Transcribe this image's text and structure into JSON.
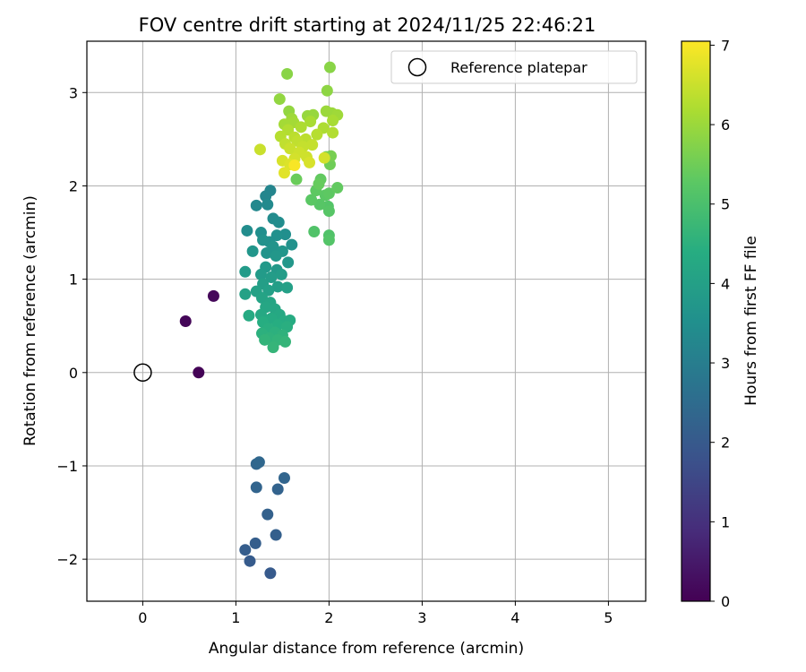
{
  "chart_data": {
    "type": "scatter",
    "title": "FOV centre drift starting at 2024/11/25 22:46:21",
    "xlabel": "Angular distance from reference (arcmin)",
    "ylabel": "Rotation from reference (arcmin)",
    "xlim": [
      -0.6,
      5.4
    ],
    "ylim": [
      -2.45,
      3.55
    ],
    "xticks": [
      0,
      1,
      2,
      3,
      4,
      5
    ],
    "yticks": [
      -2,
      -1,
      0,
      1,
      2,
      3
    ],
    "xtick_labels": [
      "0",
      "1",
      "2",
      "3",
      "4",
      "5"
    ],
    "ytick_labels": [
      "−2",
      "−1",
      "0",
      "1",
      "2",
      "3"
    ],
    "grid": true,
    "legend": {
      "placement": "top-right",
      "entries": [
        "Reference platepar"
      ]
    },
    "reference_point": {
      "name": "Reference platepar",
      "x": 0,
      "y": 0
    },
    "colorbar": {
      "label": "Hours from first FF file",
      "range": [
        0,
        7.05
      ],
      "ticks": [
        0,
        1,
        2,
        3,
        4,
        5,
        6,
        7
      ],
      "tick_labels": [
        "0",
        "1",
        "2",
        "3",
        "4",
        "5",
        "6",
        "7"
      ],
      "colormap": "viridis"
    },
    "series": [
      {
        "values": [
          [
            0.6,
            0.0,
            0.05
          ],
          [
            0.46,
            0.55,
            0.1
          ],
          [
            0.76,
            0.82,
            0.15
          ],
          [
            1.37,
            -2.15,
            2.0
          ],
          [
            1.15,
            -2.02,
            2.05
          ],
          [
            1.1,
            -1.9,
            2.1
          ],
          [
            1.21,
            -1.83,
            2.12
          ],
          [
            1.43,
            -1.74,
            2.15
          ],
          [
            1.34,
            -1.52,
            2.2
          ],
          [
            1.45,
            -1.25,
            2.25
          ],
          [
            1.22,
            -1.23,
            2.28
          ],
          [
            1.52,
            -1.13,
            2.3
          ],
          [
            1.22,
            -0.98,
            2.35
          ],
          [
            1.25,
            -0.96,
            2.38
          ],
          [
            1.37,
            1.95,
            3.2
          ],
          [
            1.32,
            1.89,
            3.25
          ],
          [
            1.22,
            1.79,
            3.3
          ],
          [
            1.34,
            1.8,
            3.35
          ],
          [
            1.4,
            1.65,
            3.4
          ],
          [
            1.46,
            1.61,
            3.45
          ],
          [
            1.12,
            1.52,
            3.45
          ],
          [
            1.27,
            1.5,
            3.5
          ],
          [
            1.53,
            1.48,
            3.5
          ],
          [
            1.44,
            1.47,
            3.55
          ],
          [
            1.36,
            1.4,
            3.55
          ],
          [
            1.29,
            1.42,
            3.6
          ],
          [
            1.6,
            1.37,
            3.6
          ],
          [
            1.4,
            1.35,
            3.65
          ],
          [
            1.33,
            1.28,
            3.65
          ],
          [
            1.5,
            1.3,
            3.7
          ],
          [
            1.18,
            1.3,
            3.7
          ],
          [
            1.43,
            1.25,
            3.75
          ],
          [
            1.56,
            1.18,
            3.75
          ],
          [
            1.32,
            1.13,
            3.8
          ],
          [
            1.44,
            1.1,
            3.8
          ],
          [
            1.1,
            1.08,
            3.85
          ],
          [
            1.27,
            1.05,
            3.85
          ],
          [
            1.38,
            1.02,
            3.9
          ],
          [
            1.49,
            1.05,
            3.9
          ],
          [
            1.29,
            0.95,
            3.95
          ],
          [
            1.45,
            0.92,
            3.95
          ],
          [
            1.55,
            0.91,
            4.0
          ],
          [
            1.35,
            0.88,
            4.0
          ],
          [
            1.22,
            0.87,
            4.05
          ],
          [
            1.1,
            0.84,
            4.05
          ],
          [
            1.28,
            0.8,
            4.1
          ],
          [
            1.37,
            0.75,
            4.15
          ],
          [
            1.42,
            0.68,
            4.2
          ],
          [
            1.32,
            0.7,
            4.2
          ],
          [
            1.27,
            0.62,
            4.25
          ],
          [
            1.47,
            0.62,
            4.25
          ],
          [
            1.14,
            0.61,
            4.3
          ],
          [
            1.38,
            0.58,
            4.3
          ],
          [
            1.52,
            0.55,
            4.35
          ],
          [
            1.58,
            0.56,
            4.35
          ],
          [
            1.29,
            0.54,
            4.4
          ],
          [
            1.45,
            0.51,
            4.4
          ],
          [
            1.55,
            0.49,
            4.45
          ],
          [
            1.35,
            0.47,
            4.45
          ],
          [
            1.42,
            0.43,
            4.5
          ],
          [
            1.28,
            0.42,
            4.5
          ],
          [
            1.5,
            0.4,
            4.55
          ],
          [
            1.36,
            0.37,
            4.55
          ],
          [
            1.45,
            0.35,
            4.6
          ],
          [
            1.31,
            0.35,
            4.6
          ],
          [
            1.53,
            0.33,
            4.65
          ],
          [
            1.4,
            0.27,
            4.65
          ],
          [
            1.84,
            1.51,
            5.1
          ],
          [
            2.0,
            1.47,
            5.1
          ],
          [
            2.0,
            1.42,
            5.15
          ],
          [
            1.99,
            1.78,
            5.15
          ],
          [
            1.9,
            1.8,
            5.2
          ],
          [
            2.0,
            1.73,
            5.2
          ],
          [
            1.81,
            1.85,
            5.25
          ],
          [
            1.96,
            1.9,
            5.25
          ],
          [
            2.0,
            1.92,
            5.3
          ],
          [
            1.86,
            1.95,
            5.3
          ],
          [
            2.09,
            1.98,
            5.35
          ],
          [
            1.91,
            2.07,
            5.35
          ],
          [
            1.89,
            2.02,
            5.4
          ],
          [
            1.65,
            2.07,
            5.45
          ],
          [
            2.01,
            2.23,
            5.5
          ],
          [
            1.97,
            2.31,
            5.55
          ],
          [
            2.02,
            2.32,
            5.6
          ],
          [
            1.55,
            3.2,
            5.8
          ],
          [
            2.01,
            3.27,
            5.8
          ],
          [
            1.98,
            3.02,
            5.85
          ],
          [
            1.47,
            2.93,
            5.9
          ],
          [
            1.57,
            2.8,
            5.9
          ],
          [
            1.77,
            2.75,
            5.95
          ],
          [
            1.83,
            2.76,
            5.95
          ],
          [
            1.97,
            2.8,
            6.0
          ],
          [
            2.03,
            2.78,
            6.0
          ],
          [
            2.09,
            2.76,
            6.05
          ],
          [
            1.6,
            2.72,
            6.05
          ],
          [
            1.62,
            2.68,
            6.1
          ],
          [
            1.52,
            2.66,
            6.1
          ],
          [
            1.8,
            2.69,
            6.15
          ],
          [
            2.04,
            2.7,
            6.15
          ],
          [
            1.7,
            2.63,
            6.2
          ],
          [
            1.94,
            2.62,
            6.2
          ],
          [
            1.56,
            2.6,
            6.25
          ],
          [
            2.04,
            2.57,
            6.25
          ],
          [
            1.87,
            2.55,
            6.3
          ],
          [
            1.48,
            2.53,
            6.3
          ],
          [
            1.63,
            2.52,
            6.35
          ],
          [
            1.75,
            2.5,
            6.35
          ],
          [
            1.66,
            2.48,
            6.4
          ],
          [
            1.53,
            2.45,
            6.4
          ],
          [
            1.82,
            2.44,
            6.45
          ],
          [
            1.72,
            2.42,
            6.45
          ],
          [
            1.58,
            2.4,
            6.5
          ],
          [
            1.26,
            2.39,
            6.5
          ],
          [
            1.68,
            2.36,
            6.55
          ],
          [
            1.76,
            2.31,
            6.55
          ],
          [
            1.95,
            2.3,
            6.6
          ],
          [
            1.63,
            2.29,
            6.6
          ],
          [
            1.5,
            2.27,
            6.65
          ],
          [
            1.79,
            2.25,
            6.65
          ],
          [
            1.58,
            2.23,
            6.7
          ],
          [
            1.52,
            2.14,
            6.75
          ],
          [
            1.63,
            2.22,
            7.0
          ]
        ]
      }
    ]
  }
}
